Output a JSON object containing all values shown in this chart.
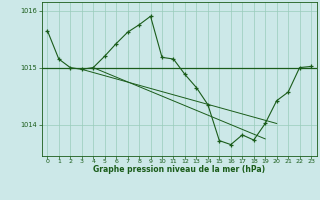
{
  "title": "Graphe pression niveau de la mer (hPa)",
  "bg_color": "#cce8e8",
  "grid_color": "#99ccbb",
  "line_color": "#1a5c1a",
  "xlim": [
    -0.5,
    23.5
  ],
  "ylim": [
    1013.45,
    1016.15
  ],
  "yticks": [
    1014,
    1015,
    1016
  ],
  "xticks": [
    0,
    1,
    2,
    3,
    4,
    5,
    6,
    7,
    8,
    9,
    10,
    11,
    12,
    13,
    14,
    15,
    16,
    17,
    18,
    19,
    20,
    21,
    22,
    23
  ],
  "hline_y": 1015.0,
  "series1_x": [
    0,
    1,
    2,
    3,
    4,
    5,
    6,
    7,
    8,
    9,
    10,
    11,
    12,
    13,
    14,
    15,
    16,
    17,
    18,
    19,
    20,
    21,
    22,
    23
  ],
  "series1_y": [
    1015.65,
    1015.15,
    1015.0,
    1014.97,
    1015.0,
    1015.2,
    1015.42,
    1015.62,
    1015.75,
    1015.9,
    1015.18,
    1015.15,
    1014.88,
    1014.65,
    1014.35,
    1013.72,
    1013.65,
    1013.82,
    1013.73,
    1014.02,
    1014.42,
    1014.57,
    1015.0,
    1015.02
  ],
  "trend1_x": [
    2,
    23
  ],
  "trend1_y": [
    1015.0,
    1015.0
  ],
  "trend2_x": [
    3,
    20
  ],
  "trend2_y": [
    1014.97,
    1014.02
  ],
  "trend3_x": [
    4,
    19
  ],
  "trend3_y": [
    1015.0,
    1013.75
  ]
}
